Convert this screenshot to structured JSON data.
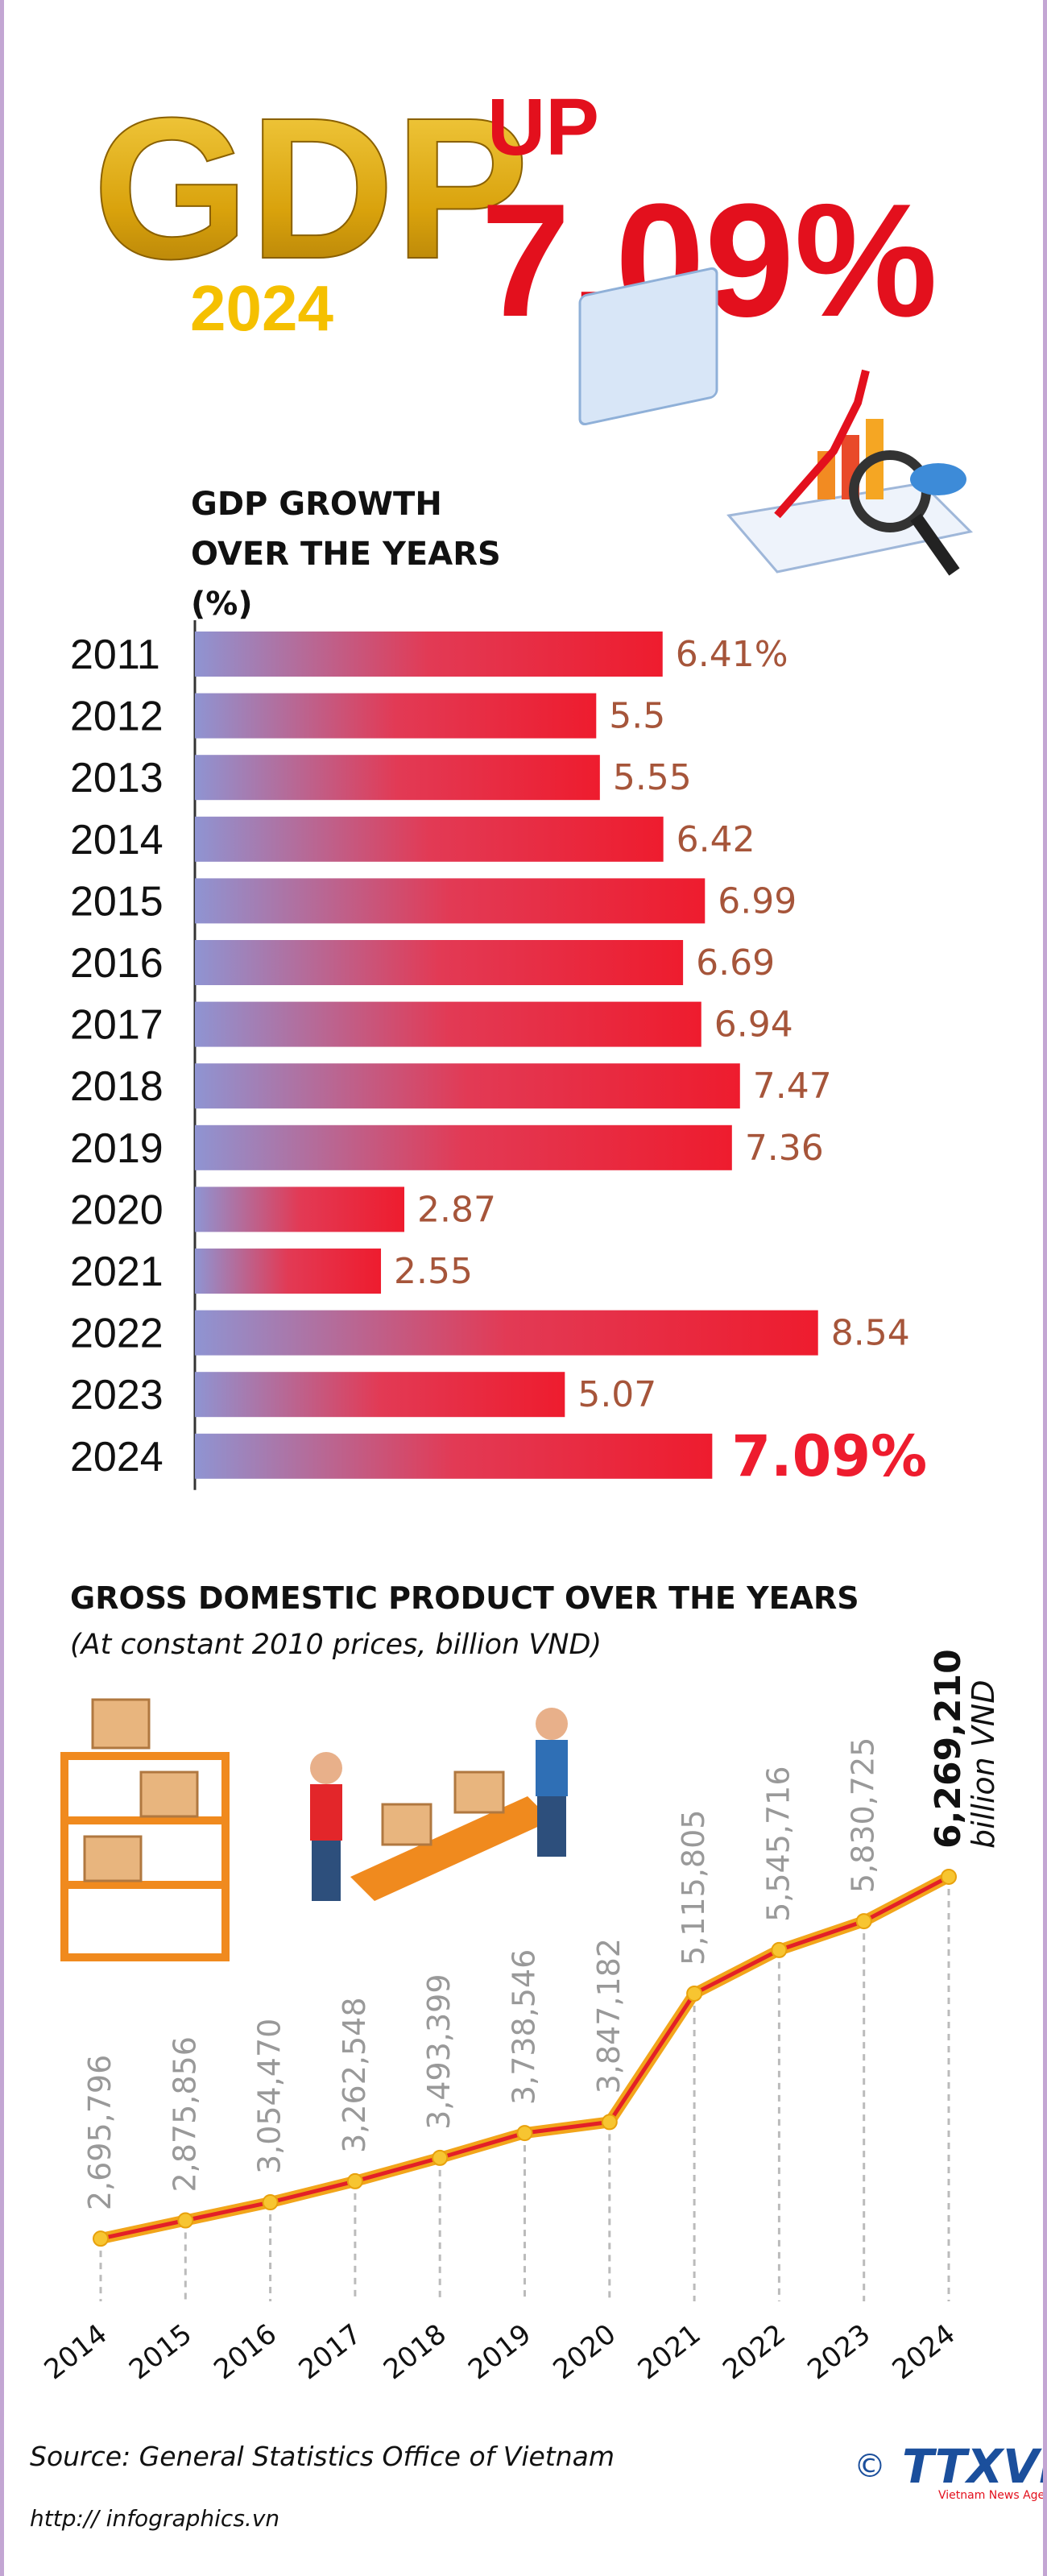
{
  "header": {
    "title": "GDP",
    "year": "2024",
    "headline_1": "UP",
    "headline_2": "7.09%"
  },
  "chart_data": [
    {
      "type": "bar",
      "title": "GDP GROWTH OVER THE YEARS (%)",
      "categories": [
        "2011",
        "2012",
        "2013",
        "2014",
        "2015",
        "2016",
        "2017",
        "2018",
        "2019",
        "2020",
        "2021",
        "2022",
        "2023",
        "2024"
      ],
      "values": [
        6.41,
        5.5,
        5.55,
        6.42,
        6.99,
        6.69,
        6.94,
        7.47,
        7.36,
        2.87,
        2.55,
        8.54,
        5.07,
        7.09
      ],
      "value_labels": [
        "6.41%",
        "5.5",
        "5.55",
        "6.42",
        "6.99",
        "6.69",
        "6.94",
        "7.47",
        "7.36",
        "2.87",
        "2.55",
        "8.54",
        "5.07",
        "7.09%"
      ],
      "color": "#ee1c2e"
    },
    {
      "type": "line",
      "title": "GROSS DOMESTIC PRODUCT OVER THE YEARS",
      "subtitle": "(At constant 2010 prices, billion VND)",
      "categories": [
        "2014",
        "2015",
        "2016",
        "2017",
        "2018",
        "2019",
        "2020",
        "2021",
        "2022",
        "2023",
        "2024"
      ],
      "values": [
        2695796,
        2875856,
        3054470,
        3262548,
        3493399,
        3738546,
        3847182,
        5115805,
        5545716,
        5830725,
        6269210
      ],
      "value_labels": [
        "2,695,796",
        "2,875,856",
        "3,054,470",
        "3,262,548",
        "3,493,399",
        "3,738,546",
        "3,847,182",
        "5,115,805",
        "5,545,716",
        "5,830,725",
        "6,269,210"
      ],
      "unit": "billion VND",
      "color": "#e32027"
    }
  ],
  "footer": {
    "source": "Source: General Statistics Office of Vietnam",
    "url": "http:// infographics.vn",
    "logo": "TTXVN",
    "logo_sub": "Vietnam News Agency"
  }
}
